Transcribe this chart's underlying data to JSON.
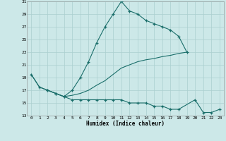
{
  "xlabel": "Humidex (Indice chaleur)",
  "bg_color": "#cce8e8",
  "grid_color": "#aacfcf",
  "line_color": "#1a6e6a",
  "xlim": [
    -0.5,
    23.5
  ],
  "ylim": [
    13,
    31
  ],
  "yticks": [
    13,
    15,
    17,
    19,
    21,
    23,
    25,
    27,
    29,
    31
  ],
  "xticks": [
    0,
    1,
    2,
    3,
    4,
    5,
    6,
    7,
    8,
    9,
    10,
    11,
    12,
    13,
    14,
    15,
    16,
    17,
    18,
    19,
    20,
    21,
    22,
    23
  ],
  "line1_x": [
    0,
    1,
    2,
    3,
    4,
    5,
    6,
    7,
    8,
    9,
    10,
    11,
    12,
    13,
    14,
    15,
    16,
    17,
    18,
    19
  ],
  "line1_y": [
    19.5,
    17.5,
    17.0,
    16.5,
    16.0,
    17.0,
    19.0,
    21.5,
    24.5,
    27.0,
    29.0,
    31.0,
    29.5,
    29.0,
    28.0,
    27.5,
    27.0,
    26.5,
    25.5,
    23.0
  ],
  "line2_x": [
    0,
    1,
    2,
    3,
    4,
    5,
    6,
    7,
    8,
    9,
    10,
    11,
    12,
    13,
    14,
    15,
    16,
    17,
    18,
    19
  ],
  "line2_y": [
    19.5,
    17.5,
    17.0,
    16.5,
    16.0,
    16.2,
    16.5,
    17.0,
    17.8,
    18.5,
    19.5,
    20.5,
    21.0,
    21.5,
    21.8,
    22.0,
    22.3,
    22.5,
    22.8,
    23.0
  ],
  "line3_x": [
    2,
    3,
    4,
    5,
    6,
    7,
    8,
    9,
    10,
    11,
    12,
    13,
    14,
    15,
    16,
    17,
    18,
    20,
    21,
    22,
    23
  ],
  "line3_y": [
    17.0,
    16.5,
    16.0,
    15.5,
    15.5,
    15.5,
    15.5,
    15.5,
    15.5,
    15.5,
    15.0,
    15.0,
    15.0,
    14.5,
    14.5,
    14.0,
    14.0,
    15.5,
    13.5,
    13.5,
    14.0
  ]
}
